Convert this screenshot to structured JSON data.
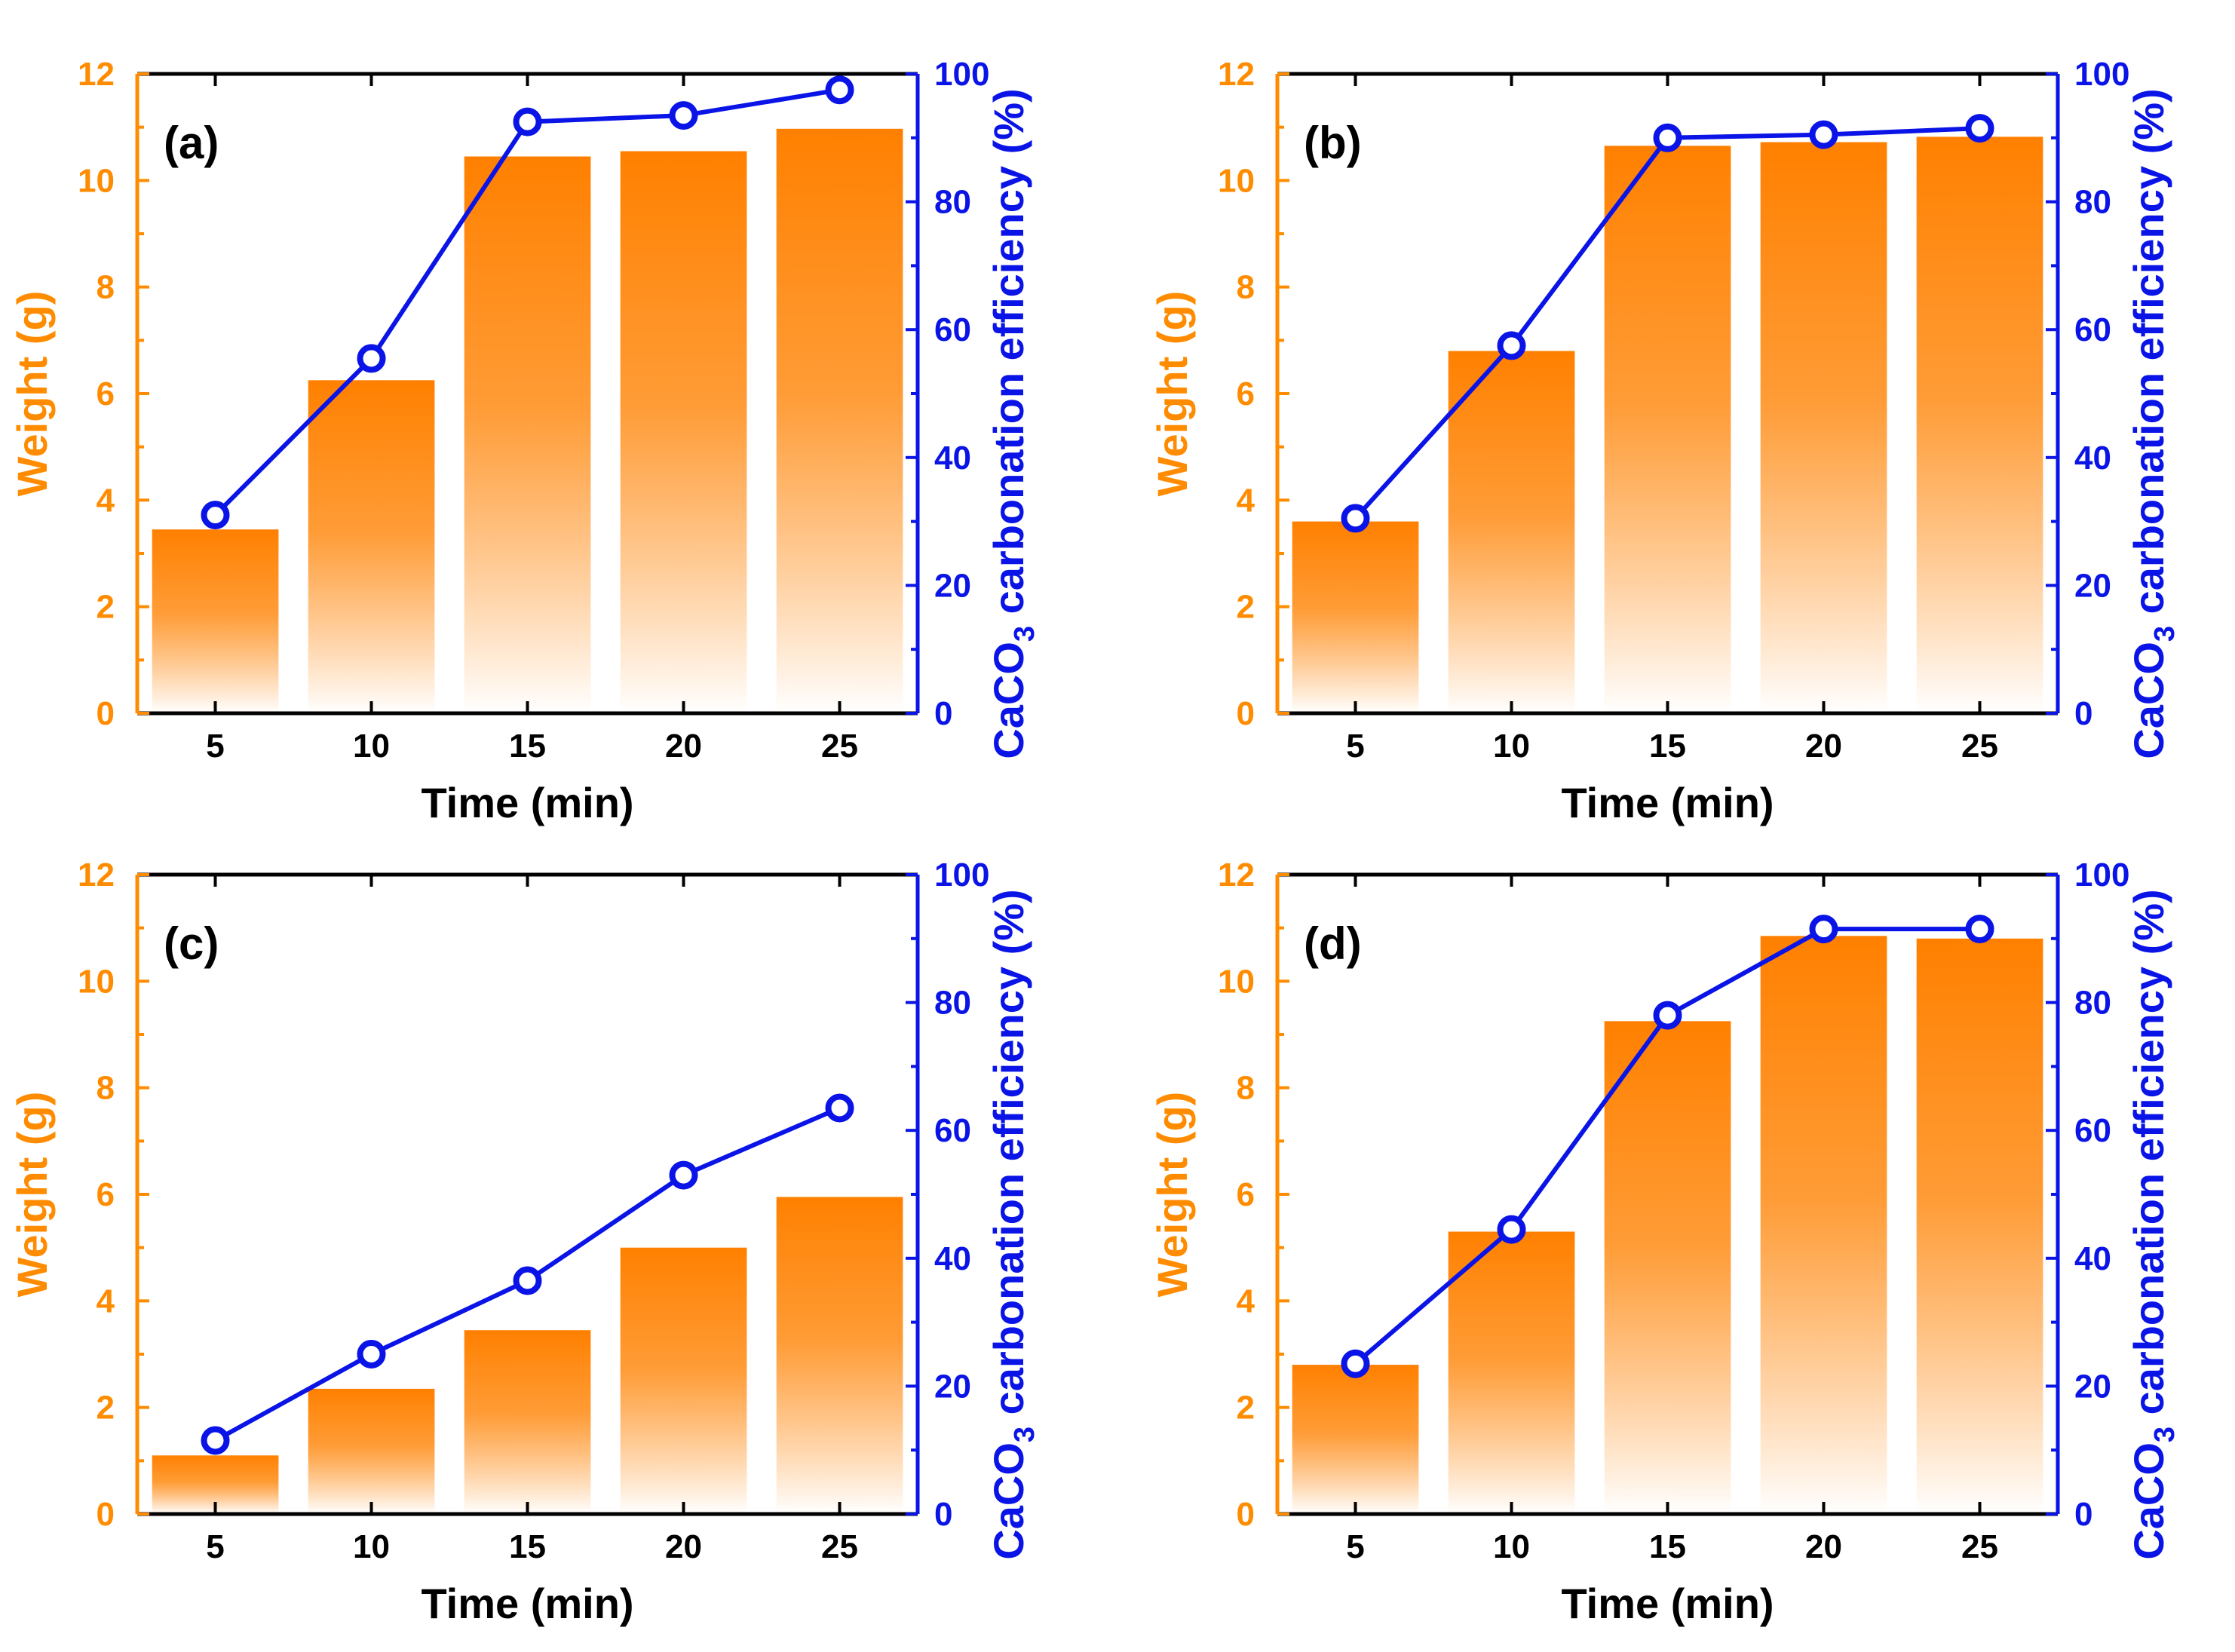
{
  "colors": {
    "bar": "#ff8000",
    "line": "#0a14e6",
    "left_axis": "#ff8c00",
    "axis_frame": "#000000",
    "background": "#ffffff"
  },
  "chart_data": [
    {
      "panel": "(a)",
      "type": "bar+line",
      "categories": [
        "5",
        "10",
        "15",
        "20",
        "25"
      ],
      "xlabel": "Time (min)",
      "ylabel_left": "Weight (g)",
      "ylabel_right_parts": [
        "CaCO",
        "3",
        " carbonation efficiency (%)"
      ],
      "ylim_left": [
        0,
        12
      ],
      "yticks_left": [
        "0",
        "2",
        "4",
        "6",
        "8",
        "10",
        "12"
      ],
      "ylim_right": [
        0,
        100
      ],
      "yticks_right": [
        "0",
        "20",
        "40",
        "60",
        "80",
        "100"
      ],
      "series": [
        {
          "name": "Weight (g)",
          "type": "bar",
          "values": [
            3.45,
            6.25,
            10.45,
            10.55,
            10.97
          ]
        },
        {
          "name": "CaCO3 carbonation efficiency (%)",
          "type": "line",
          "values": [
            31,
            55.5,
            92.5,
            93.5,
            97.5
          ]
        }
      ]
    },
    {
      "panel": "(b)",
      "type": "bar+line",
      "categories": [
        "5",
        "10",
        "15",
        "20",
        "25"
      ],
      "xlabel": "Time (min)",
      "ylabel_left": "Weight (g)",
      "ylabel_right_parts": [
        "CaCO",
        "3",
        " carbonation efficiency (%)"
      ],
      "ylim_left": [
        0,
        12
      ],
      "yticks_left": [
        "0",
        "2",
        "4",
        "6",
        "8",
        "10",
        "12"
      ],
      "ylim_right": [
        0,
        100
      ],
      "yticks_right": [
        "0",
        "20",
        "40",
        "60",
        "80",
        "100"
      ],
      "series": [
        {
          "name": "Weight (g)",
          "type": "bar",
          "values": [
            3.6,
            6.8,
            10.65,
            10.72,
            10.82
          ]
        },
        {
          "name": "CaCO3 carbonation efficiency (%)",
          "type": "line",
          "values": [
            30.5,
            57.5,
            90,
            90.5,
            91.5
          ]
        }
      ]
    },
    {
      "panel": "(c)",
      "type": "bar+line",
      "categories": [
        "5",
        "10",
        "15",
        "20",
        "25"
      ],
      "xlabel": "Time (min)",
      "ylabel_left": "Weight (g)",
      "ylabel_right_parts": [
        "CaCO",
        "3",
        " carbonation efficiency (%)"
      ],
      "ylim_left": [
        0,
        12
      ],
      "yticks_left": [
        "0",
        "2",
        "4",
        "6",
        "8",
        "10",
        "12"
      ],
      "ylim_right": [
        0,
        100
      ],
      "yticks_right": [
        "0",
        "20",
        "40",
        "60",
        "80",
        "100"
      ],
      "series": [
        {
          "name": "Weight (g)",
          "type": "bar",
          "values": [
            1.1,
            2.35,
            3.45,
            5.0,
            5.95
          ]
        },
        {
          "name": "CaCO3 carbonation efficiency (%)",
          "type": "line",
          "values": [
            11.5,
            25,
            36.5,
            53,
            63.5
          ]
        }
      ]
    },
    {
      "panel": "(d)",
      "type": "bar+line",
      "categories": [
        "5",
        "10",
        "15",
        "20",
        "25"
      ],
      "xlabel": "Time (min)",
      "ylabel_left": "Weight (g)",
      "ylabel_right_parts": [
        "CaCO",
        "3",
        " carbonation efficiency (%)"
      ],
      "ylim_left": [
        0,
        12
      ],
      "yticks_left": [
        "0",
        "2",
        "4",
        "6",
        "8",
        "10",
        "12"
      ],
      "ylim_right": [
        0,
        100
      ],
      "yticks_right": [
        "0",
        "20",
        "40",
        "60",
        "80",
        "100"
      ],
      "series": [
        {
          "name": "Weight (g)",
          "type": "bar",
          "values": [
            2.8,
            5.3,
            9.25,
            10.85,
            10.8
          ]
        },
        {
          "name": "CaCO3 carbonation efficiency (%)",
          "type": "line",
          "values": [
            23.5,
            44.5,
            78,
            91.5,
            91.5
          ]
        }
      ]
    }
  ]
}
